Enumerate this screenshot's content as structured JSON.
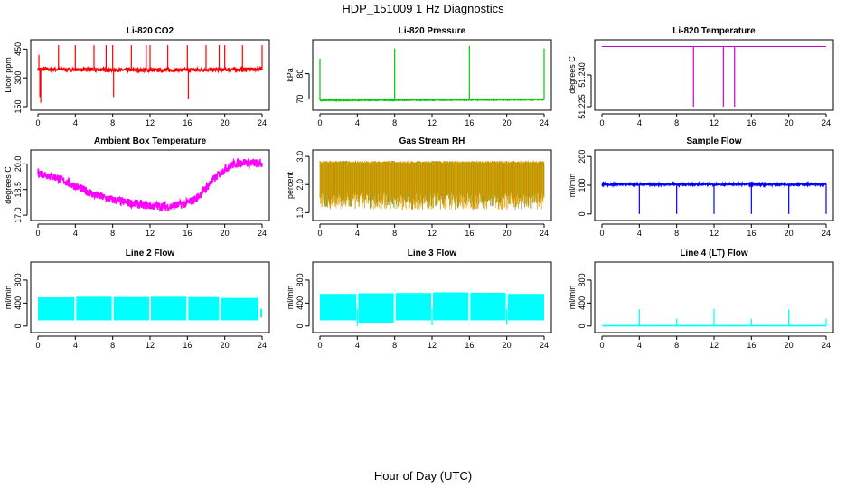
{
  "figure": {
    "title": "HDP_151009  1 Hz Diagnostics",
    "xlabel": "Hour of Day (UTC)"
  },
  "chart_data": [
    {
      "type": "line",
      "title": "Li-820 CO2",
      "ylabel": "Licor ppm",
      "color": "#ff0000",
      "xlim": [
        0,
        24
      ],
      "xticks": [
        0,
        4,
        8,
        12,
        16,
        20,
        24
      ],
      "ylim": [
        150,
        480
      ],
      "yticks": [
        150,
        300,
        450
      ],
      "baseline": [
        [
          0,
          345
        ],
        [
          6,
          342
        ],
        [
          12,
          340
        ],
        [
          18,
          342
        ],
        [
          24,
          345
        ]
      ],
      "noise": 8,
      "spikes": [
        [
          0.1,
          420
        ],
        [
          0.2,
          200
        ],
        [
          0.3,
          170
        ],
        [
          2.2,
          470
        ],
        [
          4,
          470
        ],
        [
          6,
          470
        ],
        [
          7.3,
          470
        ],
        [
          8,
          470
        ],
        [
          8.1,
          200
        ],
        [
          10,
          470
        ],
        [
          11.6,
          470
        ],
        [
          12,
          470
        ],
        [
          13.9,
          470
        ],
        [
          16,
          470
        ],
        [
          16.1,
          190
        ],
        [
          18,
          470
        ],
        [
          19.4,
          470
        ],
        [
          20,
          470
        ],
        [
          21.9,
          470
        ],
        [
          24,
          470
        ]
      ]
    },
    {
      "type": "line",
      "title": "Li-820 Pressure",
      "ylabel": "kPa",
      "color": "#00cc00",
      "xlim": [
        0,
        24
      ],
      "xticks": [
        0,
        4,
        8,
        12,
        16,
        20,
        24
      ],
      "ylim": [
        67,
        92
      ],
      "yticks": [
        70,
        80
      ],
      "baseline": [
        [
          0,
          69.5
        ],
        [
          24,
          69.8
        ]
      ],
      "noise": 0.15,
      "spikes": [
        [
          0,
          86
        ],
        [
          8,
          90
        ],
        [
          16,
          91
        ],
        [
          24,
          90
        ]
      ]
    },
    {
      "type": "line",
      "title": "Li-820 Temperature",
      "ylabel": "degrees C",
      "color": "#cc00cc",
      "xlim": [
        0,
        24
      ],
      "xticks": [
        0,
        4,
        8,
        12,
        16,
        20,
        24
      ],
      "ylim": [
        51.225,
        51.255
      ],
      "yticks": [
        51.225,
        51.24
      ],
      "ytick_labels": [
        "51.225",
        "51.240"
      ],
      "baseline": [
        [
          0,
          51.2535
        ],
        [
          24,
          51.2535
        ]
      ],
      "noise": 0,
      "spikes": [
        [
          9.8,
          51.225
        ],
        [
          13,
          51.225
        ],
        [
          14.2,
          51.225
        ]
      ]
    },
    {
      "type": "line",
      "title": "Ambient Box Temperature",
      "ylabel": "degrees C",
      "color": "#ff00ff",
      "xlim": [
        0,
        24
      ],
      "xticks": [
        0,
        4,
        8,
        12,
        16,
        20,
        24
      ],
      "ylim": [
        16.9,
        20.6
      ],
      "yticks": [
        17.0,
        18.5,
        20.0
      ],
      "ytick_labels": [
        "17.0",
        "18.5",
        "20.0"
      ],
      "baseline": [
        [
          0,
          19.5
        ],
        [
          2,
          19.2
        ],
        [
          4,
          18.7
        ],
        [
          6,
          18.2
        ],
        [
          8,
          17.9
        ],
        [
          10,
          17.7
        ],
        [
          12,
          17.55
        ],
        [
          14,
          17.5
        ],
        [
          16,
          17.7
        ],
        [
          17,
          18.0
        ],
        [
          18,
          18.6
        ],
        [
          19,
          19.2
        ],
        [
          20,
          19.7
        ],
        [
          21,
          20.0
        ],
        [
          22,
          20.1
        ],
        [
          24,
          20.0
        ]
      ],
      "noise": 0.25,
      "spikes": []
    },
    {
      "type": "line",
      "title": "Gas Stream RH",
      "ylabel": "percent",
      "color": "#ffa500",
      "color2": "#8b8b00",
      "xlim": [
        0,
        24
      ],
      "xticks": [
        0,
        4,
        8,
        12,
        16,
        20,
        24
      ],
      "ylim": [
        0.85,
        3.1
      ],
      "yticks": [
        1.0,
        2.0,
        3.0
      ],
      "ytick_labels": [
        "1.0",
        "2.0",
        "3.0"
      ],
      "baseline": [
        [
          0,
          2.0
        ],
        [
          24,
          2.0
        ]
      ],
      "band": [
        1.1,
        2.85
      ],
      "noise": 0,
      "spikes": []
    },
    {
      "type": "line",
      "title": "Sample Flow",
      "ylabel": "ml/min",
      "color": "#0000ff",
      "xlim": [
        0,
        24
      ],
      "xticks": [
        0,
        4,
        8,
        12,
        16,
        20,
        24
      ],
      "ylim": [
        -10,
        210
      ],
      "yticks": [
        0,
        100,
        200
      ],
      "baseline": [
        [
          0,
          103
        ],
        [
          24,
          103
        ]
      ],
      "noise": 3,
      "spikes": [
        [
          4,
          0
        ],
        [
          8,
          0
        ],
        [
          12,
          0
        ],
        [
          16,
          0
        ],
        [
          20,
          0
        ],
        [
          24,
          0
        ]
      ]
    },
    {
      "type": "line",
      "title": "Line 2 Flow",
      "ylabel": "ml/min",
      "color": "#00ffff",
      "xlim": [
        0,
        24
      ],
      "xticks": [
        0,
        4,
        8,
        12,
        16,
        20,
        24
      ],
      "ylim": [
        -50,
        1050
      ],
      "yticks": [
        0,
        400,
        800
      ],
      "baseline": [
        [
          0,
          300
        ],
        [
          24,
          300
        ]
      ],
      "band_segments": [
        [
          0,
          3.9,
          100,
          500
        ],
        [
          4.1,
          7.9,
          100,
          510
        ],
        [
          8.1,
          11.9,
          100,
          505
        ],
        [
          12.1,
          15.9,
          100,
          510
        ],
        [
          16.1,
          19.4,
          100,
          505
        ],
        [
          19.6,
          23.6,
          100,
          490
        ],
        [
          23.8,
          24,
          150,
          300
        ]
      ],
      "noise": 0,
      "spikes": []
    },
    {
      "type": "line",
      "title": "Line 3 Flow",
      "ylabel": "ml/min",
      "color": "#00ffff",
      "xlim": [
        0,
        24
      ],
      "xticks": [
        0,
        4,
        8,
        12,
        16,
        20,
        24
      ],
      "ylim": [
        -50,
        1050
      ],
      "yticks": [
        0,
        400,
        800
      ],
      "baseline": [
        [
          0,
          300
        ],
        [
          24,
          300
        ]
      ],
      "band_segments": [
        [
          0,
          3.9,
          100,
          560
        ],
        [
          4.1,
          7.9,
          60,
          570
        ],
        [
          8.1,
          11.9,
          100,
          575
        ],
        [
          12.1,
          15.9,
          100,
          585
        ],
        [
          16.1,
          19.9,
          100,
          580
        ],
        [
          20.1,
          24,
          100,
          560
        ]
      ],
      "noise": 0,
      "spikes": [
        [
          4,
          0
        ],
        [
          12,
          10
        ],
        [
          20,
          20
        ]
      ]
    },
    {
      "type": "line",
      "title": "Line 4 (LT) Flow",
      "ylabel": "ml/min",
      "color": "#00ffff",
      "xlim": [
        0,
        24
      ],
      "xticks": [
        0,
        4,
        8,
        12,
        16,
        20,
        24
      ],
      "ylim": [
        -50,
        1050
      ],
      "yticks": [
        0,
        400,
        800
      ],
      "baseline": [
        [
          0,
          5
        ],
        [
          24,
          5
        ]
      ],
      "noise": 2,
      "spikes": [
        [
          4,
          290
        ],
        [
          8,
          130
        ],
        [
          12,
          300
        ],
        [
          16,
          130
        ],
        [
          20,
          290
        ],
        [
          24,
          130
        ]
      ]
    }
  ]
}
